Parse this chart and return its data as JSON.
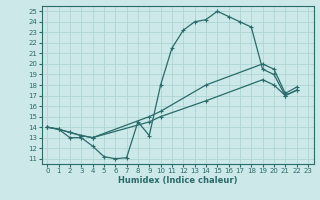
{
  "xlabel": "Humidex (Indice chaleur)",
  "xlim": [
    -0.5,
    23.5
  ],
  "ylim": [
    10.5,
    25.5
  ],
  "xticks": [
    0,
    1,
    2,
    3,
    4,
    5,
    6,
    7,
    8,
    9,
    10,
    11,
    12,
    13,
    14,
    15,
    16,
    17,
    18,
    19,
    20,
    21,
    22,
    23
  ],
  "yticks": [
    11,
    12,
    13,
    14,
    15,
    16,
    17,
    18,
    19,
    20,
    21,
    22,
    23,
    24,
    25
  ],
  "bg_color": "#cce8e8",
  "line_color": "#2a6b6b",
  "grid_color": "#aed4d4",
  "curve_main": {
    "x": [
      0,
      1,
      2,
      3,
      4,
      5,
      6,
      7,
      8,
      9,
      10,
      11,
      12,
      13,
      14,
      15,
      16,
      17,
      18,
      19,
      20,
      21,
      22
    ],
    "y": [
      14.0,
      13.8,
      13.0,
      13.0,
      12.2,
      11.2,
      11.0,
      11.1,
      14.5,
      13.2,
      18.0,
      21.5,
      23.2,
      24.0,
      24.2,
      25.0,
      24.5,
      24.0,
      23.5,
      19.5,
      19.0,
      17.0,
      17.5
    ]
  },
  "curve_mid": {
    "x": [
      0,
      1,
      2,
      3,
      4,
      9,
      10,
      14,
      19,
      20,
      21,
      22
    ],
    "y": [
      14.0,
      13.8,
      13.5,
      13.2,
      13.0,
      15.0,
      15.5,
      18.0,
      20.0,
      19.5,
      17.2,
      17.8
    ]
  },
  "curve_low": {
    "x": [
      0,
      1,
      2,
      3,
      4,
      9,
      10,
      14,
      19,
      20,
      21,
      22
    ],
    "y": [
      14.0,
      13.8,
      13.5,
      13.2,
      13.0,
      14.5,
      15.0,
      16.5,
      18.5,
      18.0,
      17.0,
      17.5
    ]
  }
}
